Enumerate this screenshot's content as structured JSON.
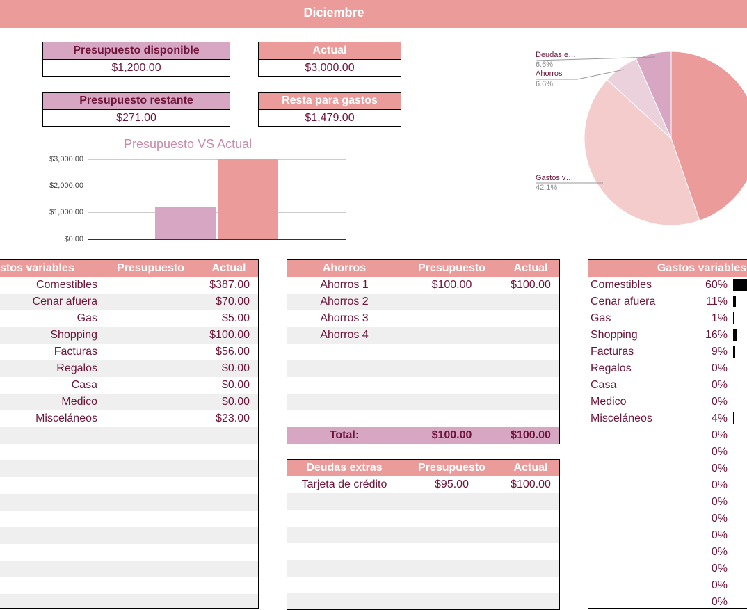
{
  "month": "Diciembre",
  "summary": {
    "presupuesto_disponible": {
      "label": "Presupuesto disponible",
      "value": "$1,200.00"
    },
    "actual": {
      "label": "Actual",
      "value": "$3,000.00"
    },
    "presupuesto_restante": {
      "label": "Presupuesto restante",
      "value": "$271.00"
    },
    "resta_para_gastos": {
      "label": "Resta para gastos",
      "value": "$1,479.00"
    }
  },
  "colors": {
    "pink": "#ec9b9b",
    "purple": "#d7a6c3",
    "text": "#6e1439"
  },
  "bar_chart": {
    "title": "Presupuesto VS Actual",
    "ticks": [
      "$3,000.00",
      "$2,000.00",
      "$1,000.00",
      "$0.00"
    ]
  },
  "pie_chart": {
    "labels": [
      {
        "name": "Deudas e…",
        "pct": "6.6%"
      },
      {
        "name": "Ahorros",
        "pct": "6.6%"
      },
      {
        "name": "Gastos v…",
        "pct": "42.1%"
      }
    ]
  },
  "chart_data": [
    {
      "type": "bar",
      "title": "Presupuesto VS Actual",
      "categories": [
        "Presupuesto",
        "Actual"
      ],
      "values": [
        1200,
        3000
      ],
      "ylim": [
        0,
        3000
      ],
      "yticks": [
        "$0.00",
        "$1,000.00",
        "$2,000.00",
        "$3,000.00"
      ],
      "grid": true
    },
    {
      "type": "pie",
      "slices": [
        {
          "label": "",
          "value": 44.7,
          "color": "#ec9b9b"
        },
        {
          "label": "Gastos v…",
          "value": 42.1,
          "color": "#f4cccc"
        },
        {
          "label": "Ahorros",
          "value": 6.6,
          "color": "#ead1dc"
        },
        {
          "label": "Deudas e…",
          "value": 6.6,
          "color": "#d7a6c3"
        }
      ]
    }
  ],
  "gastos_variables": {
    "headers": [
      "stos variables",
      "Presupuesto",
      "Actual"
    ],
    "rows": [
      {
        "name": "Comestibles",
        "budget": "",
        "actual": "$387.00"
      },
      {
        "name": "Cenar afuera",
        "budget": "",
        "actual": "$70.00"
      },
      {
        "name": "Gas",
        "budget": "",
        "actual": "$5.00"
      },
      {
        "name": "Shopping",
        "budget": "",
        "actual": "$100.00"
      },
      {
        "name": "Facturas",
        "budget": "",
        "actual": "$56.00"
      },
      {
        "name": "Regalos",
        "budget": "",
        "actual": "$0.00"
      },
      {
        "name": "Casa",
        "budget": "",
        "actual": "$0.00"
      },
      {
        "name": "Medico",
        "budget": "",
        "actual": "$0.00"
      },
      {
        "name": "Misceláneos",
        "budget": "",
        "actual": "$23.00"
      },
      {
        "name": "",
        "budget": "",
        "actual": ""
      },
      {
        "name": "",
        "budget": "",
        "actual": ""
      },
      {
        "name": "",
        "budget": "",
        "actual": ""
      },
      {
        "name": "",
        "budget": "",
        "actual": ""
      },
      {
        "name": "",
        "budget": "",
        "actual": ""
      },
      {
        "name": "",
        "budget": "",
        "actual": ""
      },
      {
        "name": "",
        "budget": "",
        "actual": ""
      },
      {
        "name": "",
        "budget": "",
        "actual": ""
      },
      {
        "name": "",
        "budget": "",
        "actual": ""
      },
      {
        "name": "",
        "budget": "",
        "actual": ""
      },
      {
        "name": "",
        "budget": "",
        "actual": ""
      }
    ]
  },
  "ahorros": {
    "headers": [
      "Ahorros",
      "Presupuesto",
      "Actual"
    ],
    "rows": [
      {
        "name": "Ahorros 1",
        "budget": "$100.00",
        "actual": "$100.00"
      },
      {
        "name": "Ahorros 2",
        "budget": "",
        "actual": ""
      },
      {
        "name": "Ahorros 3",
        "budget": "",
        "actual": ""
      },
      {
        "name": "Ahorros 4",
        "budget": "",
        "actual": ""
      },
      {
        "name": "",
        "budget": "",
        "actual": ""
      },
      {
        "name": "",
        "budget": "",
        "actual": ""
      },
      {
        "name": "",
        "budget": "",
        "actual": ""
      },
      {
        "name": "",
        "budget": "",
        "actual": ""
      },
      {
        "name": "",
        "budget": "",
        "actual": ""
      }
    ],
    "total": {
      "label": "Total:",
      "budget": "$100.00",
      "actual": "$100.00"
    }
  },
  "deudas": {
    "headers": [
      "Deudas extras",
      "Presupuesto",
      "Actual"
    ],
    "rows": [
      {
        "name": "Tarjeta de crédito",
        "budget": "$95.00",
        "actual": "$100.00"
      },
      {
        "name": "",
        "budget": "",
        "actual": ""
      },
      {
        "name": "",
        "budget": "",
        "actual": ""
      },
      {
        "name": "",
        "budget": "",
        "actual": ""
      },
      {
        "name": "",
        "budget": "",
        "actual": ""
      },
      {
        "name": "",
        "budget": "",
        "actual": ""
      },
      {
        "name": "",
        "budget": "",
        "actual": ""
      },
      {
        "name": "",
        "budget": "",
        "actual": ""
      }
    ]
  },
  "gastos_pct": {
    "header": "Gastos variables",
    "rows": [
      {
        "name": "Comestibles",
        "pct": "60%",
        "fraction": 0.6
      },
      {
        "name": "Cenar afuera",
        "pct": "11%",
        "fraction": 0.11
      },
      {
        "name": "Gas",
        "pct": "1%",
        "fraction": 0.01
      },
      {
        "name": "Shopping",
        "pct": "16%",
        "fraction": 0.16
      },
      {
        "name": "Facturas",
        "pct": "9%",
        "fraction": 0.09
      },
      {
        "name": "Regalos",
        "pct": "0%",
        "fraction": 0
      },
      {
        "name": "Casa",
        "pct": "0%",
        "fraction": 0
      },
      {
        "name": "Medico",
        "pct": "0%",
        "fraction": 0
      },
      {
        "name": "Misceláneos",
        "pct": "4%",
        "fraction": 0.04
      },
      {
        "name": "",
        "pct": "0%",
        "fraction": 0
      },
      {
        "name": "",
        "pct": "0%",
        "fraction": 0
      },
      {
        "name": "",
        "pct": "0%",
        "fraction": 0
      },
      {
        "name": "",
        "pct": "0%",
        "fraction": 0
      },
      {
        "name": "",
        "pct": "0%",
        "fraction": 0
      },
      {
        "name": "",
        "pct": "0%",
        "fraction": 0
      },
      {
        "name": "",
        "pct": "0%",
        "fraction": 0
      },
      {
        "name": "",
        "pct": "0%",
        "fraction": 0
      },
      {
        "name": "",
        "pct": "0%",
        "fraction": 0
      },
      {
        "name": "",
        "pct": "0%",
        "fraction": 0
      },
      {
        "name": "",
        "pct": "0%",
        "fraction": 0
      }
    ]
  }
}
